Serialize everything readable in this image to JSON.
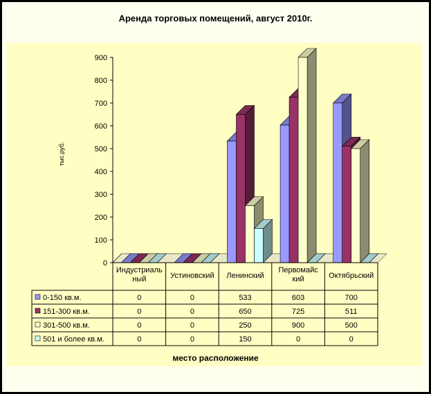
{
  "title": "Аренда торговых помещений, август 2010г.",
  "chart_data": {
    "type": "bar",
    "title": "Аренда торговых помещений, август 2010г.",
    "xlabel": "место расположение",
    "ylabel": "тыс.руб.",
    "ylim": [
      0,
      900
    ],
    "yticks": [
      "0",
      "100",
      "200",
      "300",
      "400",
      "500",
      "600",
      "700",
      "800",
      "900"
    ],
    "categories": [
      [
        "Индустриаль",
        "ный"
      ],
      [
        "Устиновский"
      ],
      [
        "Ленинский"
      ],
      [
        "Первомайс",
        "кий"
      ],
      [
        "Октябрьский"
      ]
    ],
    "category_text": [
      "Индустриальный",
      "Устиновский",
      "Ленинский",
      "Первомайский",
      "Октябрьский"
    ],
    "series": [
      {
        "name": "0-150 кв.м.",
        "values": [
          0,
          0,
          533,
          603,
          700
        ],
        "color": "#9999ff"
      },
      {
        "name": "151-300 кв.м.",
        "values": [
          0,
          0,
          650,
          725,
          511
        ],
        "color": "#993366"
      },
      {
        "name": "301-500 кв.м.",
        "values": [
          0,
          0,
          250,
          900,
          500
        ],
        "color": "#ffffcc"
      },
      {
        "name": "501 и более кв.м.",
        "values": [
          0,
          0,
          150,
          0,
          0
        ],
        "color": "#ccffff"
      }
    ],
    "data_table": true,
    "legend": "data-table"
  }
}
